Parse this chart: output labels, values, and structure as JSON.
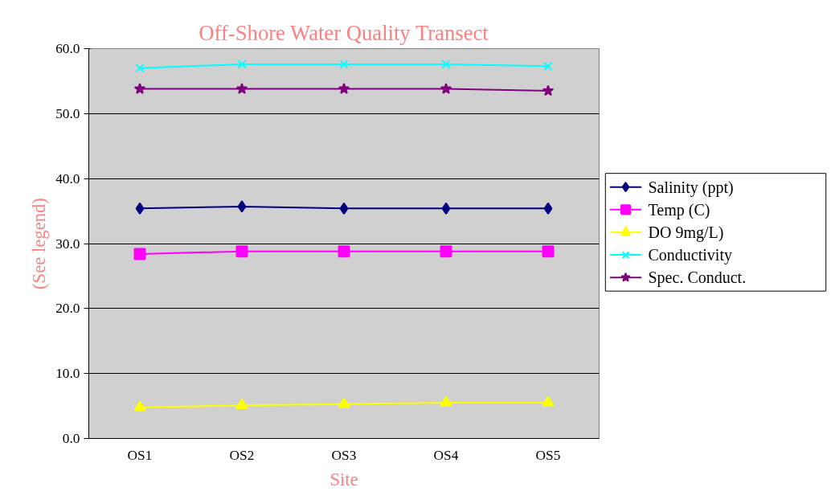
{
  "chart_data": {
    "type": "line",
    "title": "Off-Shore Water Quality Transect",
    "xlabel": "Site",
    "ylabel": "(See legend)",
    "categories": [
      "OS1",
      "OS2",
      "OS3",
      "OS4",
      "OS5"
    ],
    "series": [
      {
        "name": "Salinity (ppt)",
        "color": "#000080",
        "marker": "diamond",
        "values": [
          35.4,
          35.7,
          35.4,
          35.4,
          35.4
        ]
      },
      {
        "name": "Temp (C)",
        "color": "#ff00ff",
        "marker": "square",
        "values": [
          28.4,
          28.8,
          28.8,
          28.8,
          28.8
        ]
      },
      {
        "name": "DO 9mg/L)",
        "color": "#ffff00",
        "marker": "triangle",
        "values": [
          4.8,
          5.1,
          5.3,
          5.5,
          5.5
        ]
      },
      {
        "name": "Conductivity",
        "color": "#00ffff",
        "marker": "cross",
        "values": [
          57.0,
          57.6,
          57.6,
          57.6,
          57.3
        ]
      },
      {
        "name": "Spec. Conduct.",
        "color": "#800080",
        "marker": "star",
        "values": [
          53.8,
          53.8,
          53.8,
          53.8,
          53.5
        ]
      }
    ],
    "ylim": [
      0,
      60
    ],
    "yticks": [
      {
        "value": 0,
        "label": "0.0"
      },
      {
        "value": 10,
        "label": "10.0"
      },
      {
        "value": 20,
        "label": "20.0"
      },
      {
        "value": 30,
        "label": "30.0"
      },
      {
        "value": 40,
        "label": "40.0"
      },
      {
        "value": 50,
        "label": "50.0"
      },
      {
        "value": 60,
        "label": "60.0"
      }
    ],
    "grid": "y",
    "legend": "right"
  }
}
